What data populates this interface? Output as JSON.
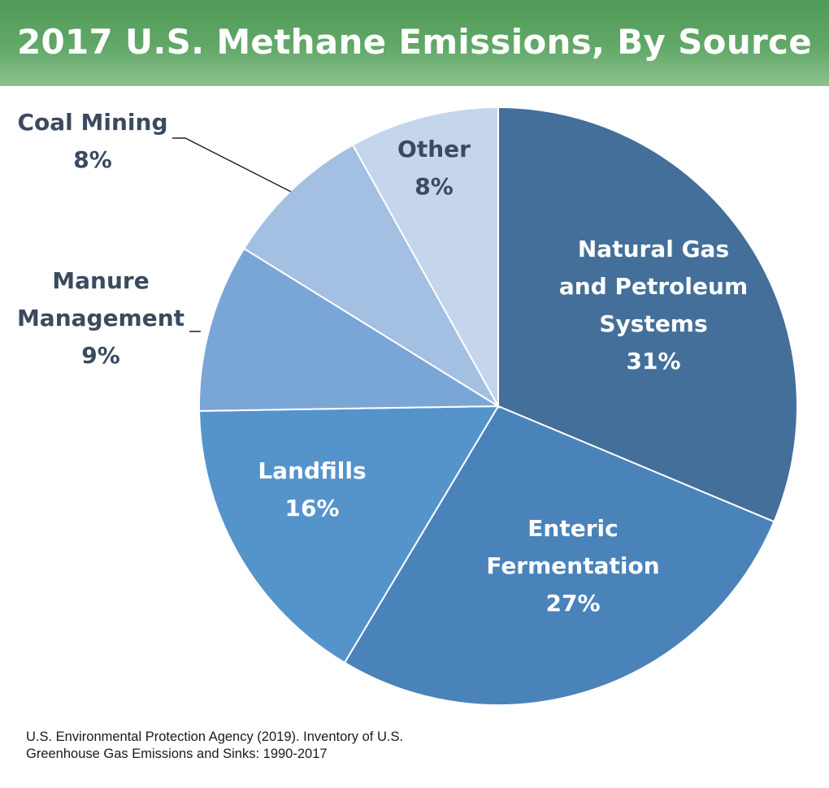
{
  "title": "2017 U.S. Methane Emissions, By Source",
  "chart_data": {
    "type": "pie",
    "title": "2017 U.S. Methane Emissions, By Source",
    "unit": "%",
    "slices": [
      {
        "label_lines": [
          "Natural Gas",
          "and Petroleum",
          "Systems"
        ],
        "value": 31,
        "value_label": "31%",
        "color": "#436f9a",
        "text_color": "#ffffff",
        "label_position": "inside"
      },
      {
        "label_lines": [
          "Enteric",
          "Fermentation"
        ],
        "value": 27,
        "value_label": "27%",
        "color": "#4a83b9",
        "text_color": "#ffffff",
        "label_position": "inside"
      },
      {
        "label_lines": [
          "Landfills"
        ],
        "value": 16,
        "value_label": "16%",
        "color": "#5593cb",
        "text_color": "#ffffff",
        "label_position": "inside"
      },
      {
        "label_lines": [
          "Manure",
          "Management"
        ],
        "value": 9,
        "value_label": "9%",
        "color": "#7aa6d7",
        "text_color": "#3b4a5e",
        "label_position": "outside-left"
      },
      {
        "label_lines": [
          "Coal Mining"
        ],
        "value": 8,
        "value_label": "8%",
        "color": "#a3bfe2",
        "text_color": "#3b4a5e",
        "label_position": "outside-left"
      },
      {
        "label_lines": [
          "Other"
        ],
        "value": 8,
        "value_label": "8%",
        "color": "#c4d5ec",
        "text_color": "#3b4a5e",
        "label_position": "inside"
      }
    ]
  },
  "source": {
    "line1": "U.S. Environmental Protection Agency (2019). Inventory of U.S.",
    "line2": "Greenhouse Gas Emissions and Sinks: 1990-2017"
  }
}
